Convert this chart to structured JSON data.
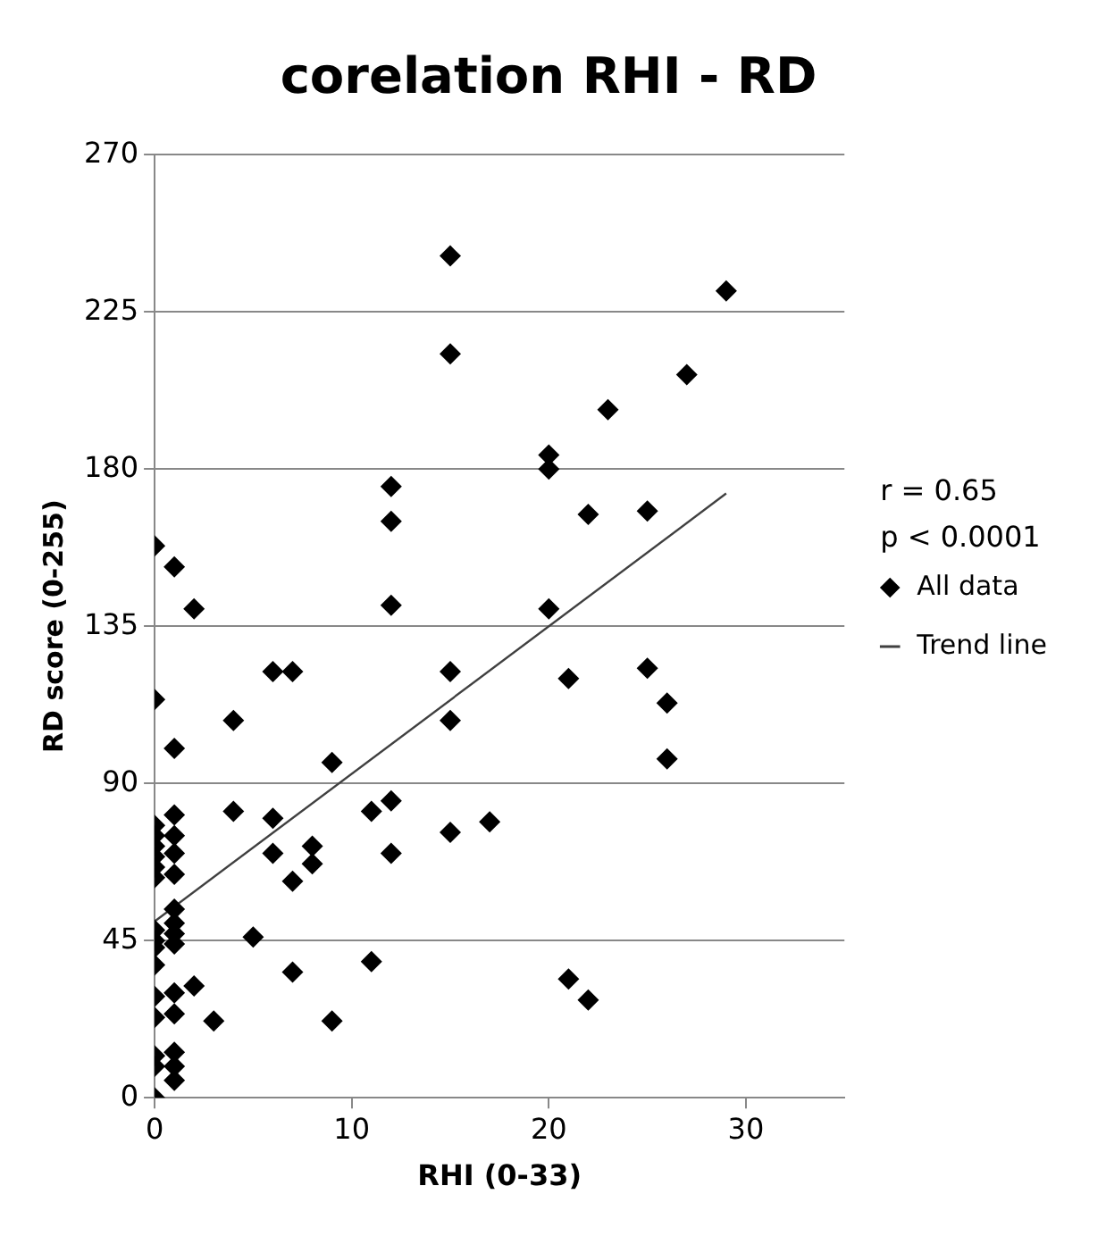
{
  "chart_data": {
    "type": "scatter",
    "title": "corelation RHI - RD",
    "xlabel": "RHI (0-33)",
    "ylabel": "RD score (0-255)",
    "xlim": [
      0,
      35
    ],
    "xticks": [
      0,
      10,
      20,
      30
    ],
    "ylim": [
      0,
      270
    ],
    "yticks": [
      0,
      45,
      90,
      135,
      180,
      225,
      270
    ],
    "grid": "y",
    "legend": "right",
    "marker": "diamond",
    "annotations": [
      "r = 0.65",
      "p < 0.0001"
    ],
    "series": [
      {
        "name": "All data",
        "type": "scatter",
        "color": "#000000",
        "x": [
          0,
          0,
          0,
          0,
          0,
          0,
          0,
          0,
          0,
          0,
          0,
          0,
          0,
          0,
          0,
          0,
          0,
          1,
          1,
          1,
          1,
          1,
          1,
          1,
          1,
          1,
          1,
          1,
          1,
          1,
          1,
          1,
          2,
          2,
          3,
          4,
          4,
          5,
          6,
          6,
          6,
          7,
          7,
          7,
          8,
          8,
          9,
          9,
          11,
          11,
          12,
          12,
          12,
          12,
          12,
          15,
          15,
          15,
          15,
          15,
          17,
          20,
          20,
          20,
          21,
          21,
          22,
          22,
          23,
          25,
          25,
          26,
          26,
          27,
          29
        ],
        "values": [
          158,
          114,
          78,
          75,
          72,
          69,
          66,
          63,
          48,
          45,
          43,
          38,
          29,
          23,
          12,
          9,
          0,
          152,
          100,
          81,
          75,
          70,
          64,
          54,
          50,
          47,
          44,
          30,
          24,
          13,
          9,
          5,
          140,
          32,
          22,
          108,
          82,
          46,
          122,
          80,
          70,
          122,
          62,
          36,
          72,
          67,
          96,
          22,
          82,
          39,
          175,
          165,
          141,
          85,
          70,
          241,
          213,
          122,
          108,
          76,
          79,
          184,
          180,
          140,
          120,
          34,
          167,
          28,
          197,
          168,
          123,
          113,
          97,
          207,
          231
        ]
      },
      {
        "name": "Trend line",
        "type": "line",
        "color": "#404040",
        "line_style": "solid",
        "marker": "none",
        "x": [
          0,
          29
        ],
        "values": [
          50.5,
          173
        ]
      }
    ]
  }
}
